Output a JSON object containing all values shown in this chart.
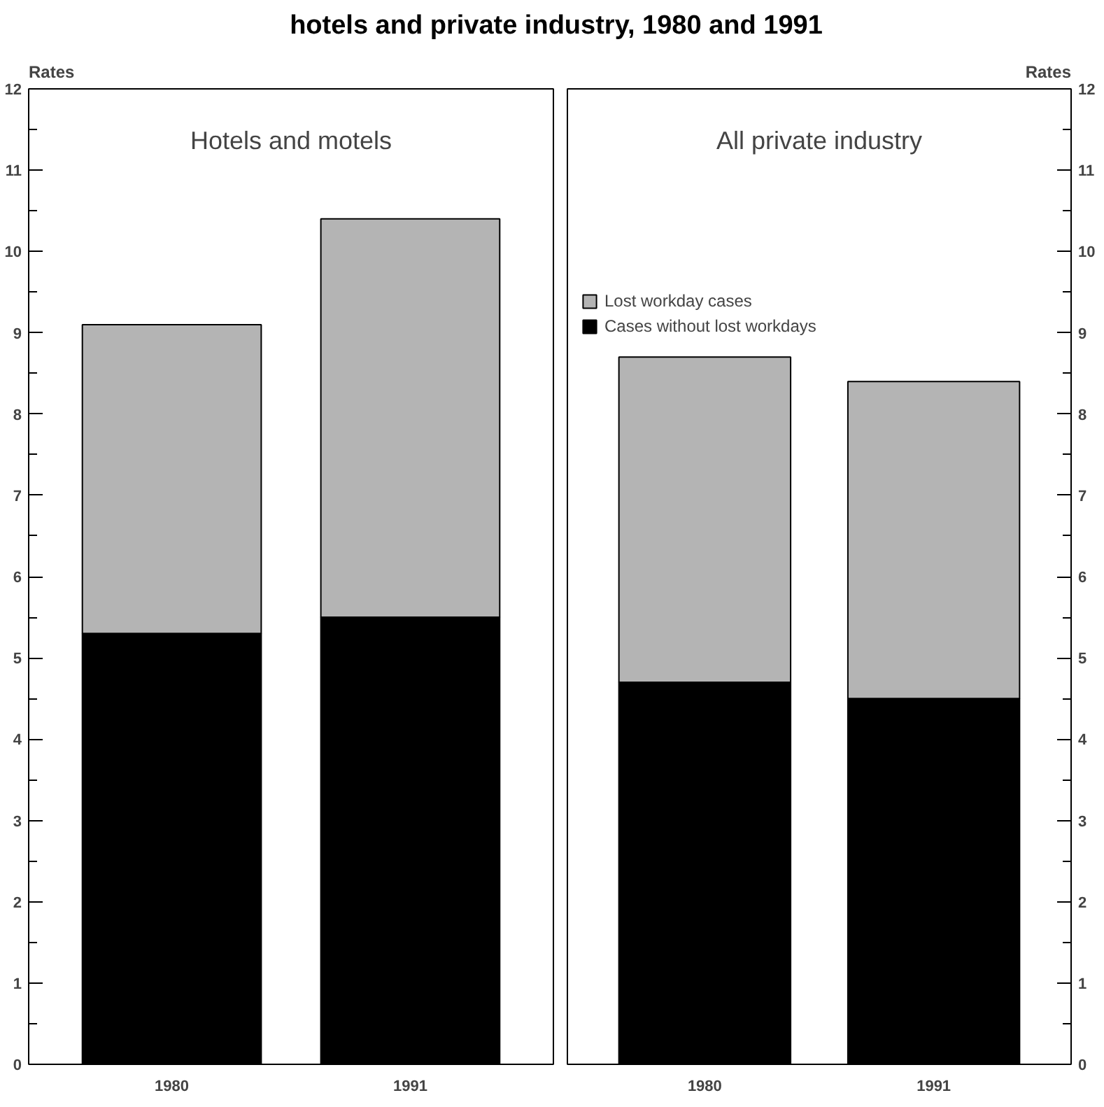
{
  "chart_data": [
    {
      "type": "bar",
      "stacked": true,
      "title": "hotels and private  industry, 1980 and 1991",
      "subtitle": "Hotels and motels",
      "ylabel": "Rates",
      "categories": [
        "1980",
        "1991"
      ],
      "ylim": [
        0,
        12
      ],
      "yticks": [
        0,
        1,
        2,
        3,
        4,
        5,
        6,
        7,
        8,
        9,
        10,
        11,
        12
      ],
      "grid": false,
      "legend": false,
      "series": [
        {
          "color": "#000000",
          "values": [
            5.3,
            5.5
          ]
        },
        {
          "color": "#b4b4b4",
          "values": [
            3.8,
            4.9
          ]
        }
      ]
    },
    {
      "type": "bar",
      "stacked": true,
      "subtitle": "All private industry",
      "ylabel": "Rates",
      "categories": [
        "1980",
        "1991"
      ],
      "ylim": [
        0,
        12
      ],
      "yticks": [
        0,
        1,
        2,
        3,
        4,
        5,
        6,
        7,
        8,
        9,
        10,
        11,
        12
      ],
      "grid": false,
      "legend": "top left",
      "series": [
        {
          "name": "Cases without lost workdays",
          "color": "#000000",
          "values": [
            4.7,
            4.5
          ]
        },
        {
          "name": "Lost workday cases",
          "color": "#b4b4b4",
          "values": [
            4.0,
            3.9
          ]
        }
      ]
    }
  ]
}
